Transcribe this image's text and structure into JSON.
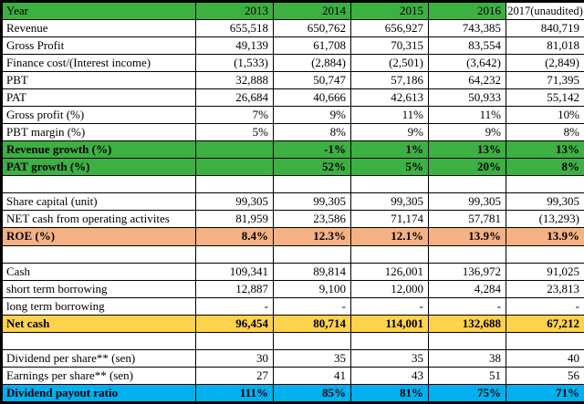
{
  "title": "Financial summary table 2013-2017",
  "colors": {
    "header_green": "#3CB043",
    "highlight_orange": "#F4B183",
    "highlight_yellow": "#FFD24B",
    "highlight_cyan": "#00B0F0",
    "grid_border": "#000000"
  },
  "chart_data": {
    "type": "table",
    "columns": [
      "Year",
      "2013",
      "2014",
      "2015",
      "2016",
      "2017(unaudited)"
    ],
    "rows": [
      {
        "label": "Revenue",
        "values": [
          "655,518",
          "650,762",
          "656,927",
          "743,385",
          "840,719"
        ],
        "style": "plain"
      },
      {
        "label": "Gross Profit",
        "values": [
          "49,139",
          "61,708",
          "70,315",
          "83,554",
          "81,018"
        ],
        "style": "plain"
      },
      {
        "label": "Finance cost/(Interest income)",
        "values": [
          "(1,533)",
          "(2,884)",
          "(2,501)",
          "(3,642)",
          "(2,849)"
        ],
        "style": "plain"
      },
      {
        "label": "PBT",
        "values": [
          "32,888",
          "50,747",
          "57,186",
          "64,232",
          "71,395"
        ],
        "style": "plain"
      },
      {
        "label": "PAT",
        "values": [
          "26,684",
          "40,666",
          "42,613",
          "50,933",
          "55,142"
        ],
        "style": "plain"
      },
      {
        "label": "Gross profit (%)",
        "values": [
          "7%",
          "9%",
          "11%",
          "11%",
          "10%"
        ],
        "style": "plain"
      },
      {
        "label": "PBT margin (%)",
        "values": [
          "5%",
          "8%",
          "9%",
          "9%",
          "8%"
        ],
        "style": "plain"
      },
      {
        "label": "Revenue growth (%)",
        "values": [
          "",
          "-1%",
          "1%",
          "13%",
          "13%"
        ],
        "style": "green"
      },
      {
        "label": "PAT growth (%)",
        "values": [
          "",
          "52%",
          "5%",
          "20%",
          "8%"
        ],
        "style": "green"
      },
      {
        "label": "",
        "values": [
          "",
          "",
          "",
          "",
          ""
        ],
        "style": "spacer"
      },
      {
        "label": "Share capital (unit)",
        "values": [
          "99,305",
          "99,305",
          "99,305",
          "99,305",
          "99,305"
        ],
        "style": "plain"
      },
      {
        "label": "NET cash from operating activites",
        "values": [
          "81,959",
          "23,586",
          "71,174",
          "57,781",
          "(13,293)"
        ],
        "style": "plain"
      },
      {
        "label": "ROE (%)",
        "values": [
          "8.4%",
          "12.3%",
          "12.1%",
          "13.9%",
          "13.9%"
        ],
        "style": "orange"
      },
      {
        "label": "",
        "values": [
          "",
          "",
          "",
          "",
          ""
        ],
        "style": "spacer"
      },
      {
        "label": "Cash",
        "values": [
          "109,341",
          "89,814",
          "126,001",
          "136,972",
          "91,025"
        ],
        "style": "plain"
      },
      {
        "label": "short term borrowing",
        "values": [
          "12,887",
          "9,100",
          "12,000",
          "4,284",
          "23,813"
        ],
        "style": "plain"
      },
      {
        "label": "long term borrowing",
        "values": [
          "-",
          "-",
          "-",
          "-",
          "-"
        ],
        "style": "plain"
      },
      {
        "label": "Net cash",
        "values": [
          "96,454",
          "80,714",
          "114,001",
          "132,688",
          "67,212"
        ],
        "style": "yellow"
      },
      {
        "label": "",
        "values": [
          "",
          "",
          "",
          "",
          ""
        ],
        "style": "spacer"
      },
      {
        "label": "Dividend per share** (sen)",
        "values": [
          "30",
          "35",
          "35",
          "38",
          "40"
        ],
        "style": "plain"
      },
      {
        "label": "Earnings per share** (sen)",
        "values": [
          "27",
          "41",
          "43",
          "51",
          "56"
        ],
        "style": "plain"
      },
      {
        "label": "Dividend payout ratio",
        "values": [
          "111%",
          "85%",
          "81%",
          "75%",
          "71%"
        ],
        "style": "cyan"
      }
    ]
  }
}
